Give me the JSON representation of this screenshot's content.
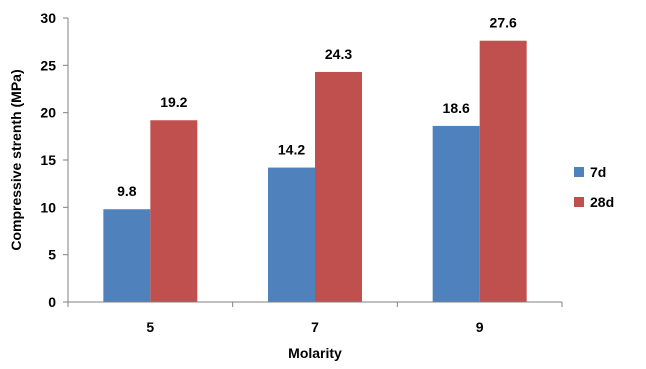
{
  "chart_data": {
    "type": "bar",
    "title": "",
    "xlabel": "Molarity",
    "ylabel": "Compressive strenth (MPa)",
    "categories": [
      "5",
      "7",
      "9"
    ],
    "series": [
      {
        "name": "7d",
        "values": [
          9.8,
          14.2,
          18.6
        ],
        "color": "#4F81BD"
      },
      {
        "name": "28d",
        "values": [
          19.2,
          24.3,
          27.6
        ],
        "color": "#C0504D"
      }
    ],
    "ylim": [
      0,
      30
    ],
    "yticks": [
      "0",
      "5",
      "10",
      "15",
      "20",
      "25",
      "30"
    ],
    "grid": false,
    "legend_position": "right"
  }
}
